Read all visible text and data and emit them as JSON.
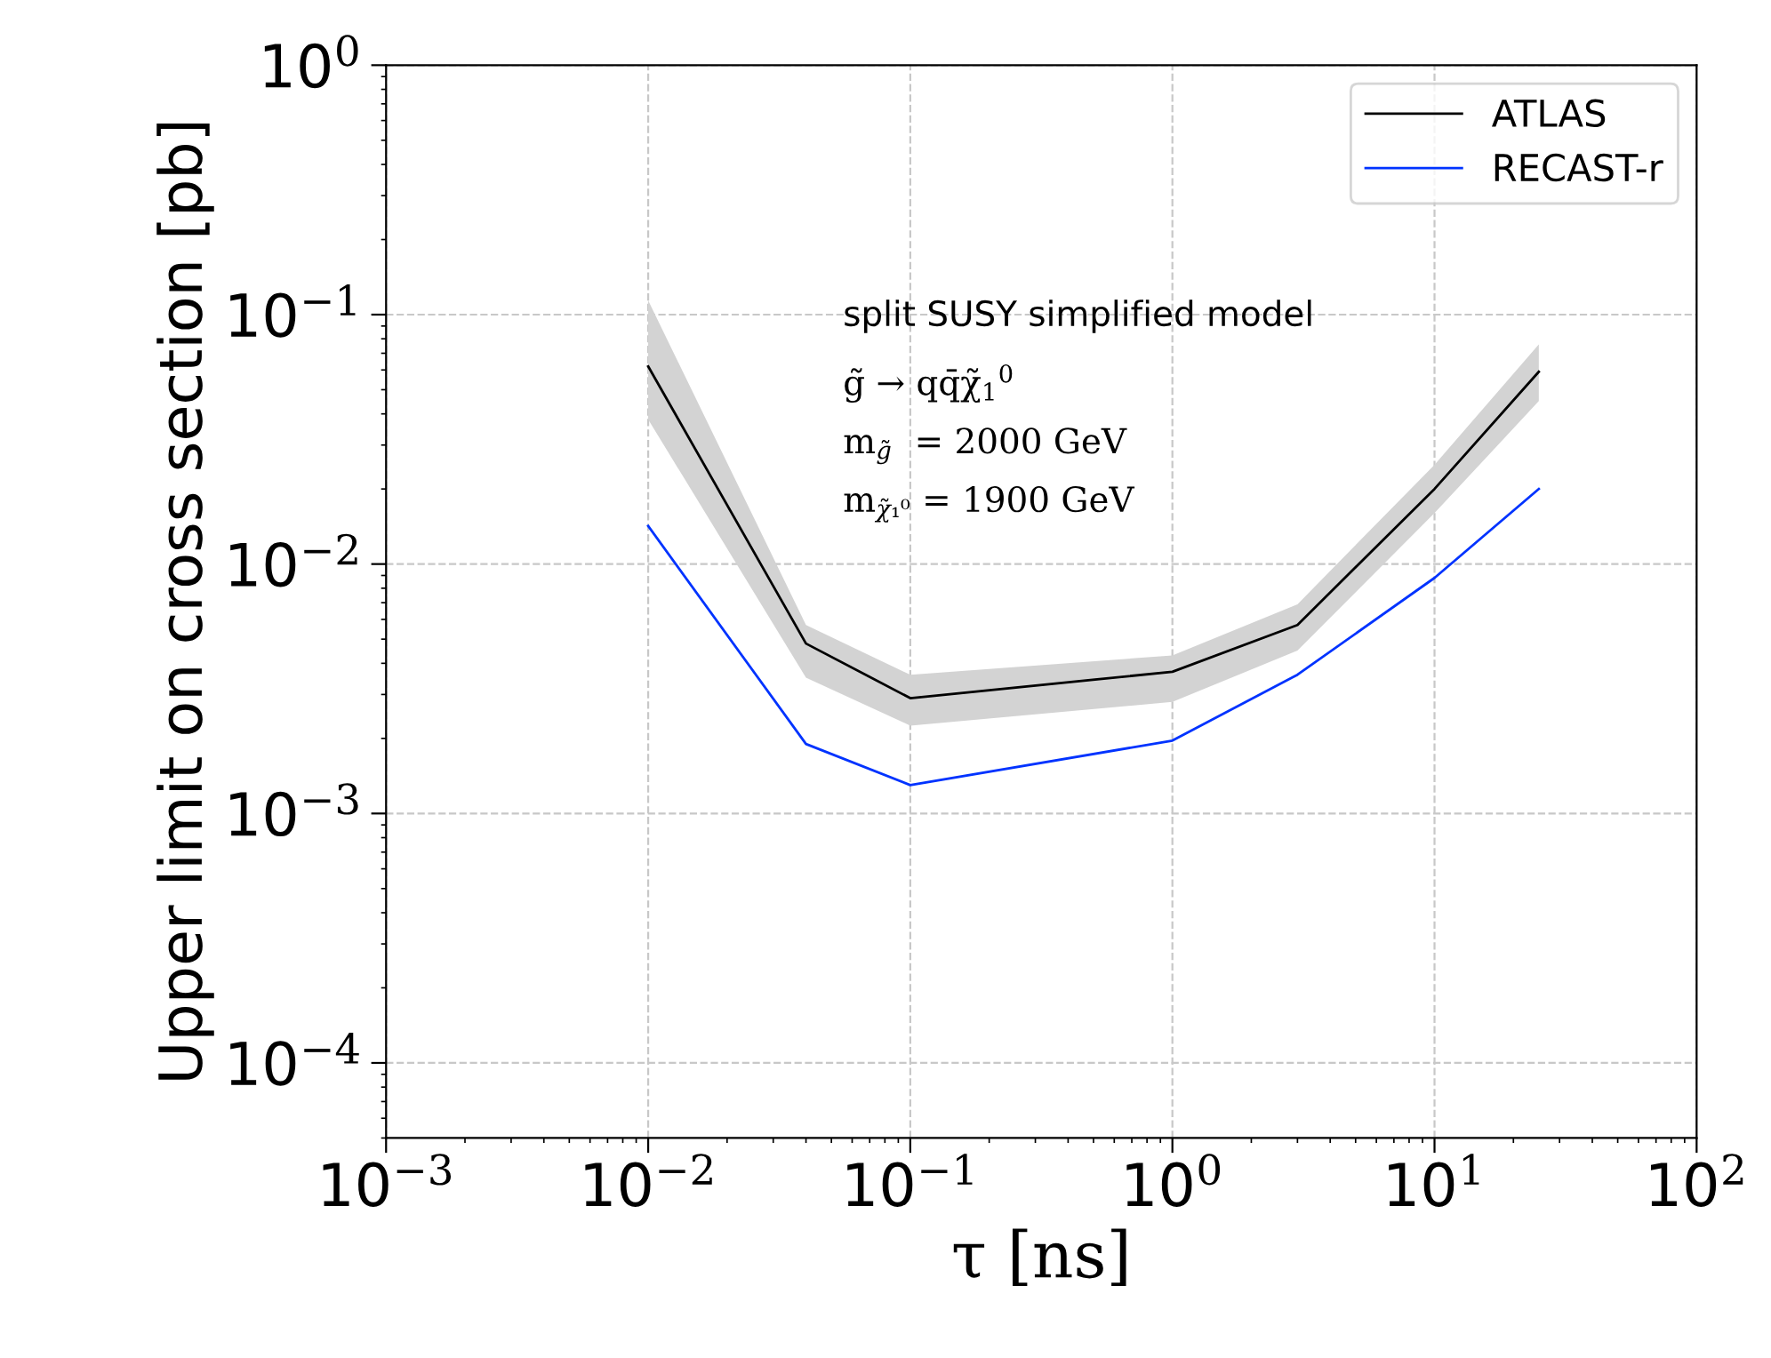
{
  "chart_data": {
    "type": "line",
    "xlabel": "τ [ns]",
    "ylabel": "Upper limit on cross section [pb]",
    "log": "xy",
    "x": [
      0.01,
      0.04,
      0.1,
      1,
      3,
      10,
      25
    ],
    "series": [
      {
        "name": "ATLAS",
        "color": "#000000",
        "values": [
          0.062,
          0.0048,
          0.0029,
          0.0037,
          0.0057,
          0.02,
          0.059
        ],
        "lower": [
          0.038,
          0.0035,
          0.00225,
          0.0028,
          0.0045,
          0.016,
          0.045
        ],
        "upper": [
          0.114,
          0.0057,
          0.0036,
          0.0043,
          0.0069,
          0.025,
          0.076
        ]
      },
      {
        "name": "RECAST-r",
        "color": "#0033ff",
        "values": [
          0.0142,
          0.0019,
          0.0013,
          0.00196,
          0.0036,
          0.0088,
          0.02
        ]
      }
    ],
    "xlim": [
      0.001,
      100
    ],
    "ylim": [
      5e-05,
      1
    ],
    "xticks": [
      {
        "value": 0.001,
        "label": "10$^{−3}$"
      },
      {
        "value": 0.01,
        "label": "10$^{−2}$"
      },
      {
        "value": 0.1,
        "label": "10$^{−1}$"
      },
      {
        "value": 1,
        "label": "10$^{0}$"
      },
      {
        "value": 10,
        "label": "10$^{1}$"
      },
      {
        "value": 100,
        "label": "10$^{2}$"
      }
    ],
    "yticks": [
      {
        "value": 0.0001,
        "label": "10$^{−4}$"
      },
      {
        "value": 0.001,
        "label": "10$^{−3}$"
      },
      {
        "value": 0.01,
        "label": "10$^{−2}$"
      },
      {
        "value": 0.1,
        "label": "10$^{−1}$"
      },
      {
        "value": 1,
        "label": "10$^{0}$"
      }
    ],
    "annotations": [
      "split SUSY simplified model",
      "g̃ → qq̄χ̃$_{1}$$^{0}$",
      "m$_{g̃}$  = 2000 GeV",
      "m$_{χ̃₁⁰}$ = 1900 GeV"
    ],
    "grid": true,
    "legend": "top right",
    "line_style": "solid",
    "marker": "none"
  }
}
